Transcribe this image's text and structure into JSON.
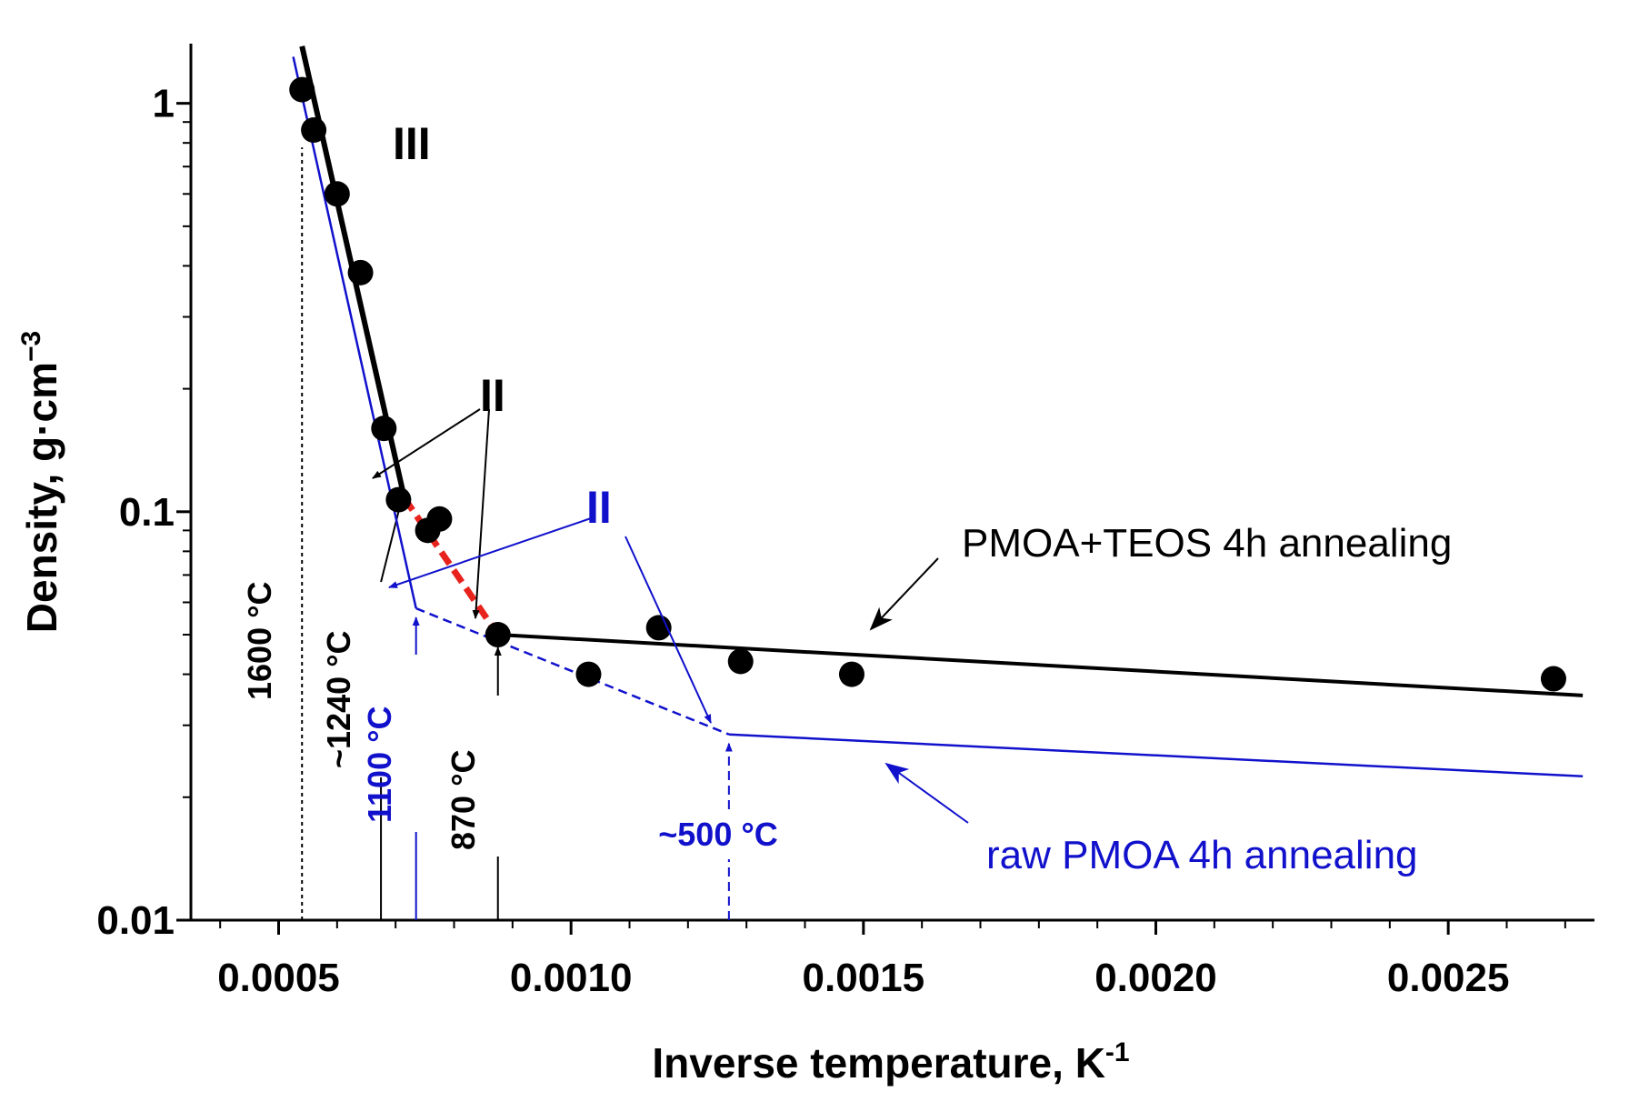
{
  "chart_data": {
    "type": "scatter",
    "title": "",
    "xlabel": "Inverse temperature, K",
    "xlabel_sup": "-1",
    "ylabel": "Density, g·cm",
    "ylabel_sup": "−3",
    "xlim": [
      0.00035,
      0.00275
    ],
    "ylim": [
      0.01,
      1.4
    ],
    "yscale": "log",
    "xticks": [
      0.0005,
      0.001,
      0.0015,
      0.002,
      0.0025
    ],
    "xtick_labels": [
      "0.0005",
      "0.0010",
      "0.0015",
      "0.0020",
      "0.0025"
    ],
    "yticks": [
      0.01,
      0.1,
      1
    ],
    "ytick_labels": [
      "0.01",
      "0.1",
      "1"
    ],
    "scatter_points": {
      "name": "PMOA+TEOS 4h annealing",
      "x": [
        0.00054,
        0.00056,
        0.0006,
        0.00064,
        0.00068,
        0.000705,
        0.000755,
        0.000775,
        0.000875,
        0.00103,
        0.00115,
        0.00129,
        0.00148,
        0.00268
      ],
      "y": [
        1.08,
        0.86,
        0.6,
        0.385,
        0.16,
        0.107,
        0.09,
        0.096,
        0.05,
        0.04,
        0.052,
        0.043,
        0.04,
        0.039
      ]
    },
    "fit_lines": [
      {
        "name": "PMOA+TEOS region III fit",
        "color": "#000000",
        "style": "solid",
        "x": [
          0.00054,
          0.000715
        ],
        "y": [
          1.38,
          0.108
        ]
      },
      {
        "name": "PMOA+TEOS region II transition",
        "color": "#e8231e",
        "style": "dashed",
        "x": [
          0.000715,
          0.000875
        ],
        "y": [
          0.108,
          0.05
        ]
      },
      {
        "name": "PMOA+TEOS low-temperature fit",
        "color": "#000000",
        "style": "solid",
        "x": [
          0.000875,
          0.00273
        ],
        "y": [
          0.05,
          0.0355
        ]
      },
      {
        "name": "raw PMOA region III fit",
        "color": "#1111cc",
        "style": "solid",
        "x": [
          0.000525,
          0.000735
        ],
        "y": [
          1.3,
          0.058
        ]
      },
      {
        "name": "raw PMOA region II transition",
        "color": "#1111cc",
        "style": "dashed",
        "x": [
          0.000735,
          0.00127
        ],
        "y": [
          0.058,
          0.0285
        ]
      },
      {
        "name": "raw PMOA low-temperature fit",
        "color": "#1111cc",
        "style": "solid",
        "x": [
          0.00127,
          0.00273
        ],
        "y": [
          0.0285,
          0.0225
        ]
      }
    ],
    "legend": {
      "black_label": "PMOA+TEOS 4h annealing",
      "blue_label": "raw PMOA 4h annealing"
    },
    "regions": {
      "black_III": "III",
      "black_II": "II",
      "blue_II": "II"
    },
    "temperature_marks": [
      {
        "label": "1600 °C",
        "x": 0.00054,
        "color": "#000000",
        "style": "dotted"
      },
      {
        "label": "~1240 °C",
        "x": 0.000675,
        "color": "#000000",
        "style": "solid"
      },
      {
        "label": "1100 °C",
        "x": 0.000735,
        "color": "#1111cc",
        "style": "arrow"
      },
      {
        "label": "870 °C",
        "x": 0.000875,
        "color": "#000000",
        "style": "arrow"
      },
      {
        "label": "~500 °C",
        "x": 0.00127,
        "color": "#1111cc",
        "style": "dashed-arrow"
      }
    ],
    "colors": {
      "black": "#000000",
      "blue": "#1111cc",
      "red": "#e8231e"
    }
  }
}
